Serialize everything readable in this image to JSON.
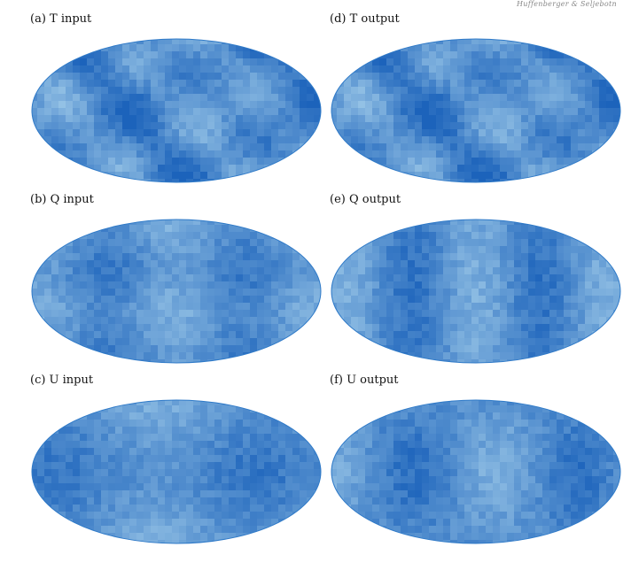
{
  "running_head": "Huffenberger & Seljebotn",
  "colors": {
    "base": "#2f7ac8",
    "dark": "#1c63bb",
    "light": "#9cc8e8",
    "mid": "#4d94d3"
  },
  "panels": [
    {
      "id": "a",
      "label": "(a) T input",
      "kind": "T"
    },
    {
      "id": "d",
      "label": "(d) T output",
      "kind": "T"
    },
    {
      "id": "b",
      "label": "(b) Q input",
      "kind": "Qin"
    },
    {
      "id": "e",
      "label": "(e) Q output",
      "kind": "Qout"
    },
    {
      "id": "c",
      "label": "(c) U input",
      "kind": "Uin"
    },
    {
      "id": "f",
      "label": "(f) U output",
      "kind": "Uout"
    }
  ]
}
